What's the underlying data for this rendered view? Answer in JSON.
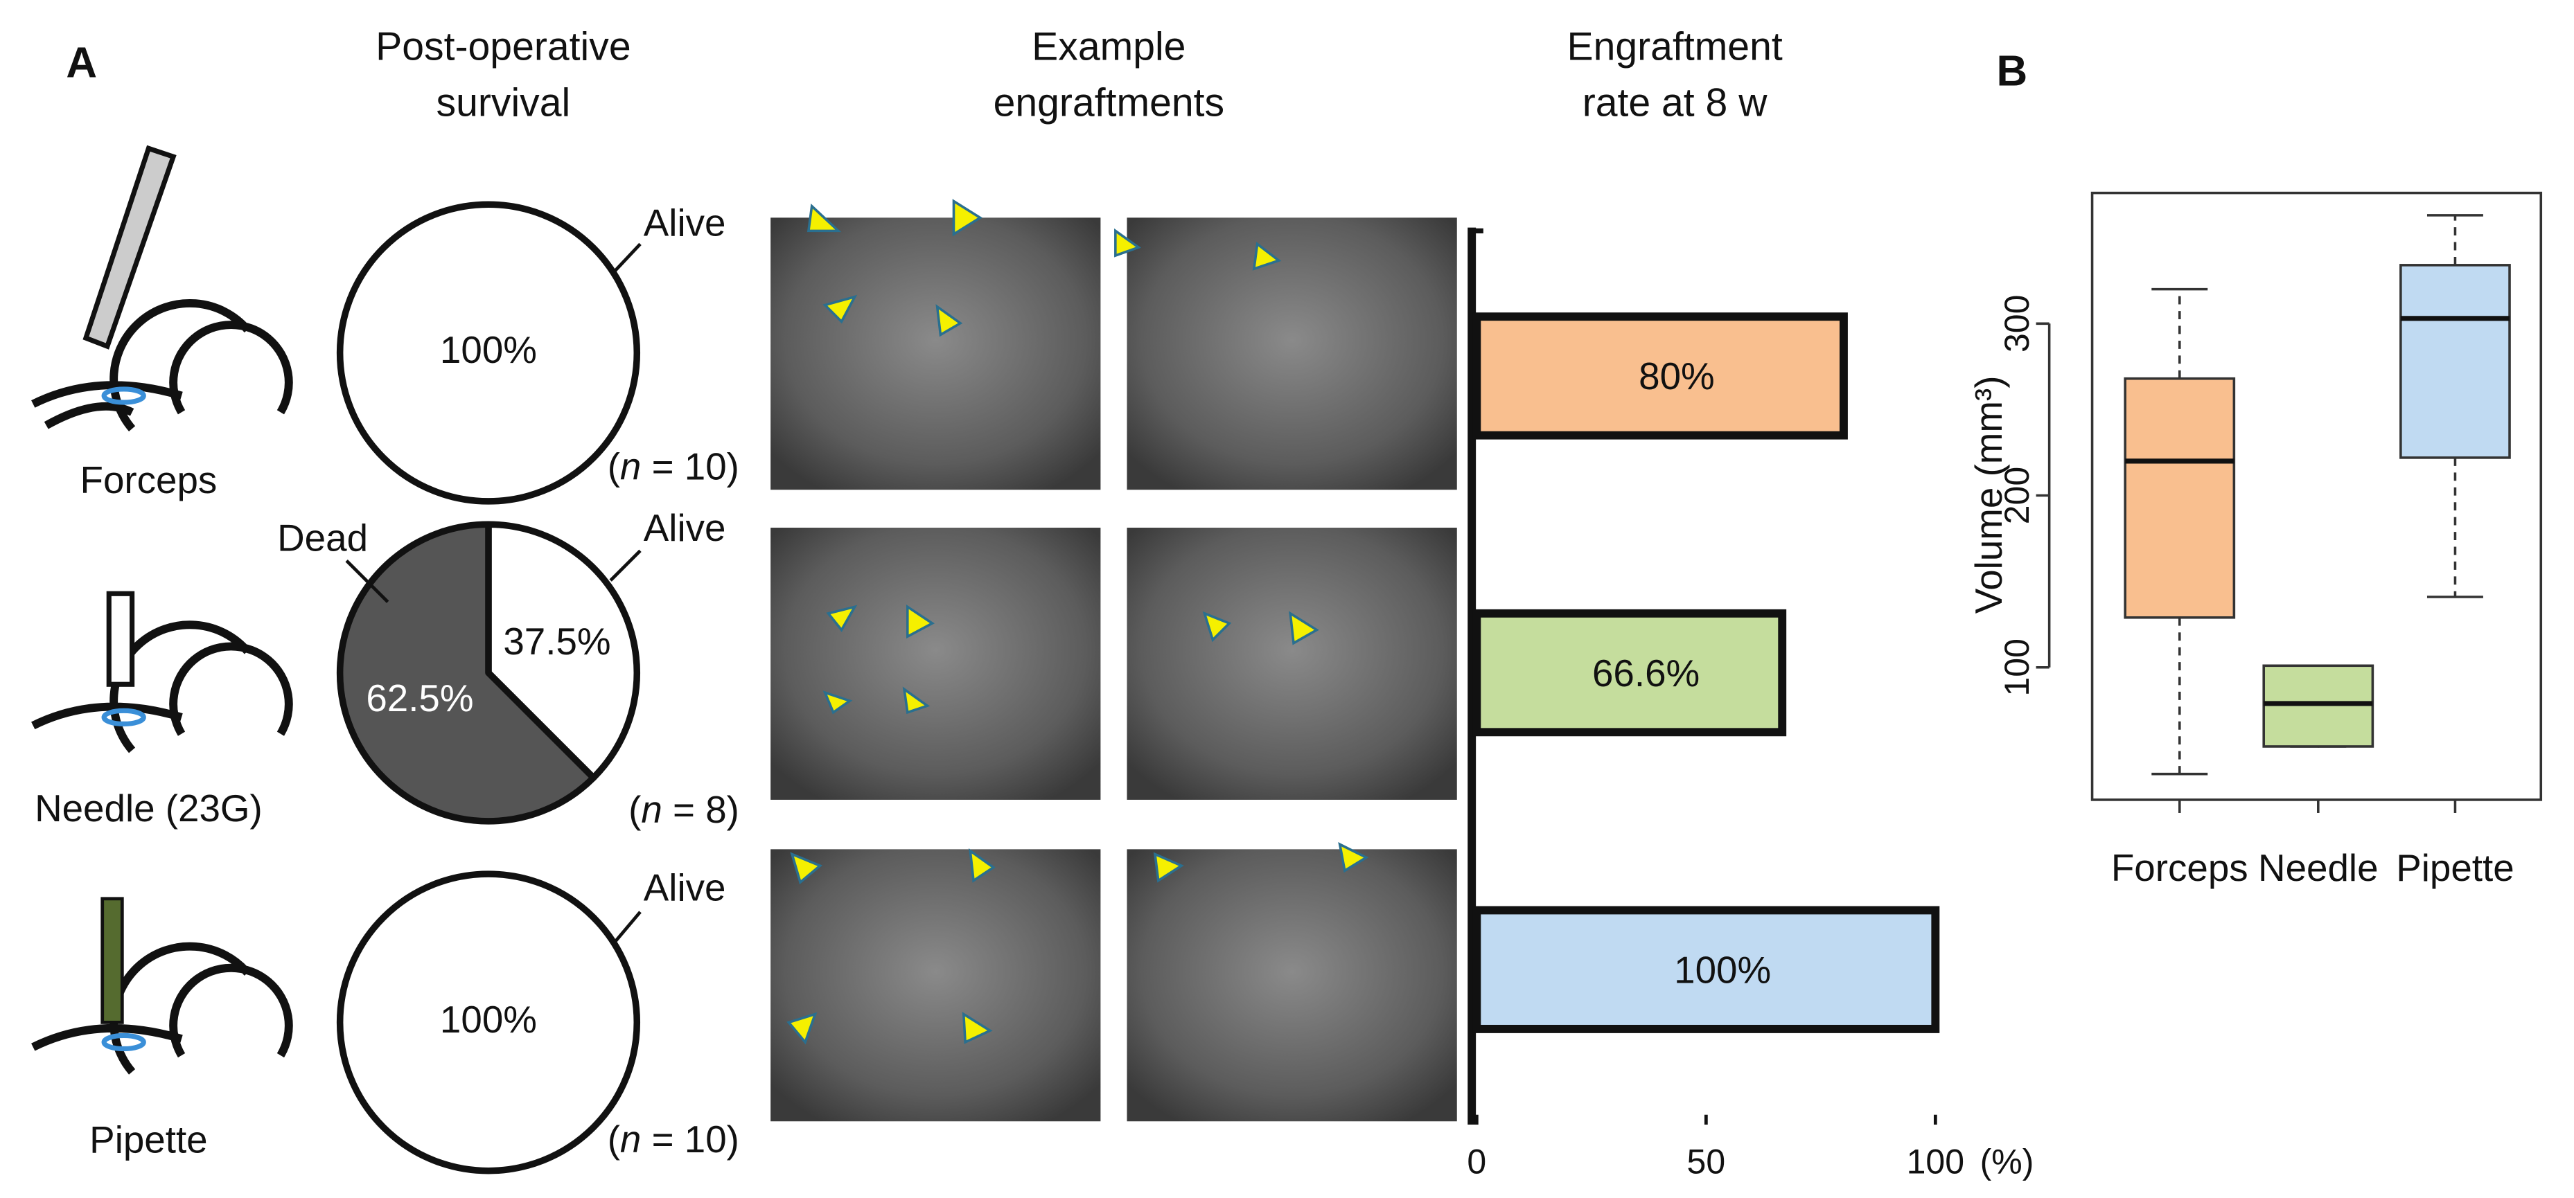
{
  "figure": {
    "panels": [
      "A",
      "B"
    ],
    "headers": [
      [
        "Post-operative",
        "survival"
      ],
      [
        "Example",
        "engraftments"
      ],
      [
        "Engraftment",
        "rate at 8 w"
      ]
    ]
  },
  "chart_data": [
    {
      "type": "pie",
      "method": "Forceps",
      "sample": "(n = 10)",
      "categories": [
        "Alive"
      ],
      "values": [
        100
      ],
      "value_labels": [
        "100%"
      ],
      "colors": [
        "#ffffff"
      ]
    },
    {
      "type": "pie",
      "method": "Needle (23G)",
      "sample": "(n = 8)",
      "categories": [
        "Alive",
        "Dead"
      ],
      "values": [
        37.5,
        62.5
      ],
      "value_labels": [
        "37.5%",
        "62.5%"
      ],
      "colors": [
        "#ffffff",
        "#555555"
      ]
    },
    {
      "type": "pie",
      "method": "Pipette",
      "sample": "(n = 10)",
      "categories": [
        "Alive"
      ],
      "values": [
        100
      ],
      "value_labels": [
        "100%"
      ],
      "colors": [
        "#ffffff"
      ]
    },
    {
      "type": "bar",
      "orientation": "horizontal",
      "values": [
        80,
        66.6,
        100
      ],
      "value_labels": [
        "80%",
        "66.6%",
        "100%"
      ],
      "colors": [
        "#f9bf8f",
        "#c5dd9d",
        "#c0daf2"
      ],
      "xlim": [
        0,
        100
      ],
      "xticks": [
        0,
        50,
        100
      ],
      "xlabel": "(%)"
    },
    {
      "type": "box",
      "categories": [
        "Forceps",
        "Needle",
        "Pipette"
      ],
      "boxes": [
        {
          "min": 38,
          "q1": 129,
          "median": 220,
          "q3": 268,
          "max": 320
        },
        {
          "min": 54,
          "q1": 54,
          "median": 79,
          "q3": 101,
          "max": 101
        },
        {
          "min": 141,
          "q1": 222,
          "median": 303,
          "q3": 334,
          "max": 363
        }
      ],
      "colors": [
        "#f9bf8f",
        "#c5dd9d",
        "#c0daf2"
      ],
      "ylabel": "Volume (mm³)",
      "ylim": [
        23,
        376
      ],
      "yticks": [
        100,
        200,
        300
      ]
    }
  ]
}
